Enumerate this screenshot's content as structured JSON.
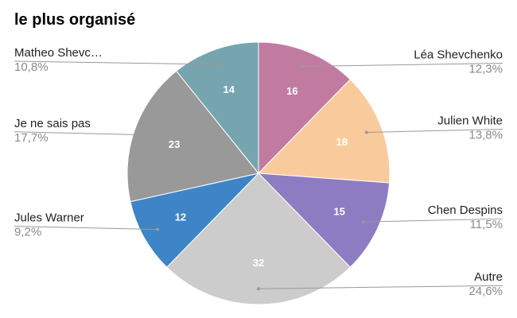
{
  "chart_data": {
    "type": "pie",
    "title": "le plus organisé",
    "slices": [
      {
        "name": "Léa Shevchenko",
        "label": "Léa Shevchenko",
        "value": 16,
        "percent_label": "12,3%",
        "color": "#c27ba0",
        "side": "right"
      },
      {
        "name": "Julien White",
        "label": "Julien White",
        "value": 18,
        "percent_label": "13,8%",
        "color": "#f9cb9c",
        "side": "right"
      },
      {
        "name": "Chen Despins",
        "label": "Chen Despins",
        "value": 15,
        "percent_label": "11,5%",
        "color": "#8e7cc3",
        "side": "right"
      },
      {
        "name": "Autre",
        "label": "Autre",
        "value": 32,
        "percent_label": "24,6%",
        "color": "#cccccc",
        "side": "right"
      },
      {
        "name": "Jules Warner",
        "label": "Jules Warner",
        "value": 12,
        "percent_label": "9,2%",
        "color": "#3d85c6",
        "side": "left"
      },
      {
        "name": "Je ne sais pas",
        "label": "Je ne sais pas",
        "value": 23,
        "percent_label": "17,7%",
        "color": "#999999",
        "side": "left"
      },
      {
        "name": "Matheo Shevchenko",
        "label": "Matheo Shevc…",
        "value": 14,
        "percent_label": "10,8%",
        "color": "#76a5af",
        "side": "left"
      }
    ],
    "start_angle": "12 o'clock",
    "direction": "clockwise",
    "legend": "none"
  }
}
